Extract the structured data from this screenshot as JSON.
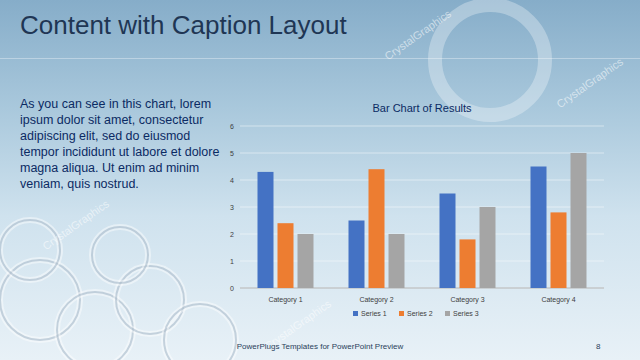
{
  "slide": {
    "title": "Content with Caption Layout",
    "caption": "As you can see in this chart, lorem ipsum dolor sit amet, consectetur adipiscing elit, sed do eiusmod tempor incididunt ut labore et dolore magna aliqua. Ut enim ad minim veniam, quis nostrud.",
    "footer": "PowerPlugs Templates for PowerPoint Preview",
    "page_number": 8,
    "watermark": "CrystalGraphics"
  },
  "chart_data": {
    "type": "bar",
    "title": "Bar Chart of Results",
    "categories": [
      "Category 1",
      "Category 2",
      "Category 3",
      "Category 4"
    ],
    "series": [
      {
        "name": "Series 1",
        "color": "#4472c4",
        "values": [
          4.3,
          2.5,
          3.5,
          4.5
        ]
      },
      {
        "name": "Series 2",
        "color": "#ed7d31",
        "values": [
          2.4,
          4.4,
          1.8,
          2.8
        ]
      },
      {
        "name": "Series 3",
        "color": "#a5a5a5",
        "values": [
          2.0,
          2.0,
          3.0,
          5.0
        ]
      }
    ],
    "ylim": [
      0,
      6
    ],
    "yticks": [
      0,
      1,
      2,
      3,
      4,
      5,
      6
    ],
    "grid": true,
    "legend": "bottom"
  }
}
